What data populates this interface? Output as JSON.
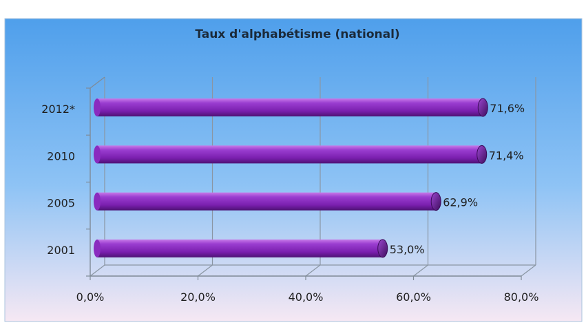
{
  "chart_data": {
    "type": "bar",
    "orientation": "horizontal",
    "title": "Taux d'alphabétisme (national)",
    "categories": [
      "2001",
      "2005",
      "2010",
      "2012*"
    ],
    "values": [
      53.0,
      62.9,
      71.4,
      71.6
    ],
    "data_labels": [
      "53,0%",
      "62,9%",
      "71,4%",
      "71,6%"
    ],
    "x_ticks": [
      0,
      20,
      40,
      60,
      80
    ],
    "x_tick_labels": [
      "0,0%",
      "20,0%",
      "40,0%",
      "60,0%",
      "80,0%"
    ],
    "xlim": [
      0,
      80
    ],
    "grid": true,
    "legend": "none",
    "colors": {
      "bar": "#8a2bbf",
      "bar_dark": "#4e1274",
      "bar_light": "#c77ae8",
      "background_top": "#5aa8f0",
      "background_bottom": "#f3e6f4",
      "frame": "#8fb3d8"
    }
  }
}
